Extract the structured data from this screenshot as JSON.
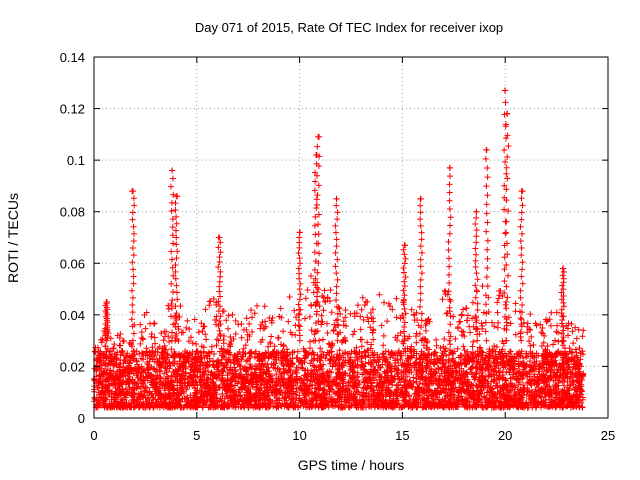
{
  "chart_data": {
    "type": "scatter",
    "title": "Day 071 of 2015, Rate Of TEC Index for receiver ixop",
    "xlabel": "GPS time / hours",
    "ylabel": "ROTI / TECUs",
    "xlim": [
      0,
      25
    ],
    "ylim": [
      0,
      0.14
    ],
    "xticks": [
      0,
      5,
      10,
      15,
      20,
      25
    ],
    "xtick_labels": [
      "0",
      "5",
      "10",
      "15",
      "20",
      "25"
    ],
    "yticks": [
      0,
      0.02,
      0.04,
      0.06,
      0.08,
      0.1,
      0.12,
      0.14
    ],
    "ytick_labels": [
      "0",
      "0.02",
      "0.04",
      "0.06",
      "0.08",
      "0.1",
      "0.12",
      "0.14"
    ],
    "grid": true,
    "marker": "plus",
    "color": "#ff0000",
    "x_data_range": [
      0,
      23.8
    ],
    "envelope": {
      "hours": [
        0,
        0.5,
        1,
        1.5,
        2,
        2.5,
        3,
        3.5,
        4,
        4.5,
        5,
        5.5,
        6,
        6.5,
        7,
        7.5,
        8,
        8.5,
        9,
        9.5,
        10,
        10.5,
        11,
        11.5,
        12,
        12.5,
        13,
        13.5,
        14,
        14.5,
        15,
        15.5,
        16,
        16.5,
        17,
        17.5,
        18,
        18.5,
        19,
        19.5,
        20,
        20.5,
        21,
        21.5,
        22,
        22.5,
        23,
        23.5
      ],
      "typical_max": [
        0.028,
        0.035,
        0.032,
        0.033,
        0.04,
        0.042,
        0.038,
        0.045,
        0.05,
        0.04,
        0.04,
        0.045,
        0.048,
        0.04,
        0.042,
        0.044,
        0.046,
        0.042,
        0.045,
        0.047,
        0.05,
        0.055,
        0.058,
        0.05,
        0.046,
        0.045,
        0.047,
        0.045,
        0.05,
        0.048,
        0.048,
        0.042,
        0.04,
        0.038,
        0.05,
        0.048,
        0.045,
        0.05,
        0.052,
        0.05,
        0.05,
        0.046,
        0.042,
        0.04,
        0.04,
        0.042,
        0.038,
        0.035
      ]
    },
    "spikes": [
      {
        "x": 0.6,
        "y_top": 0.045
      },
      {
        "x": 1.9,
        "y_top": 0.088
      },
      {
        "x": 3.8,
        "y_top": 0.096
      },
      {
        "x": 4.0,
        "y_top": 0.086
      },
      {
        "x": 6.1,
        "y_top": 0.07
      },
      {
        "x": 10.0,
        "y_top": 0.072
      },
      {
        "x": 10.8,
        "y_top": 0.102
      },
      {
        "x": 10.9,
        "y_top": 0.109
      },
      {
        "x": 11.8,
        "y_top": 0.085
      },
      {
        "x": 15.1,
        "y_top": 0.067
      },
      {
        "x": 15.9,
        "y_top": 0.085
      },
      {
        "x": 17.3,
        "y_top": 0.097
      },
      {
        "x": 18.6,
        "y_top": 0.08
      },
      {
        "x": 19.1,
        "y_top": 0.104
      },
      {
        "x": 20.0,
        "y_top": 0.127
      },
      {
        "x": 20.1,
        "y_top": 0.118
      },
      {
        "x": 20.8,
        "y_top": 0.088
      },
      {
        "x": 22.8,
        "y_top": 0.058
      }
    ],
    "baseline_min": 0.004,
    "baseline_typical_max": 0.02
  }
}
